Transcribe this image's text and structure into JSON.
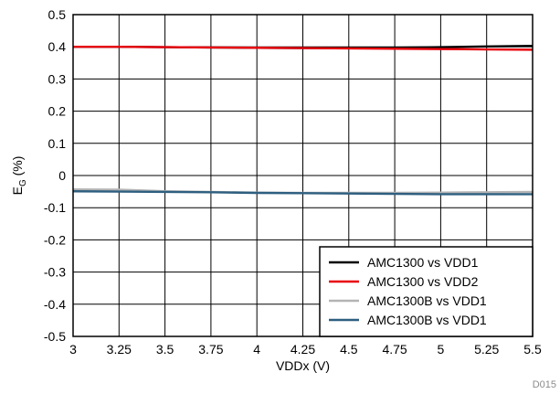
{
  "chart_data": {
    "type": "line",
    "xlabel": "VDDx (V)",
    "ylabel_main": "E",
    "ylabel_sub": "G",
    "ylabel_unit": " (%)",
    "xlim": [
      3,
      5.5
    ],
    "ylim": [
      -0.5,
      0.5
    ],
    "x_ticks": [
      "3",
      "3.25",
      "3.5",
      "3.75",
      "4",
      "4.25",
      "4.5",
      "4.75",
      "5",
      "5.25",
      "5.5"
    ],
    "y_ticks": [
      "0.5",
      "0.4",
      "0.3",
      "0.2",
      "0.1",
      "0",
      "-0.1",
      "-0.2",
      "-0.3",
      "-0.4",
      "-0.5"
    ],
    "grid": true,
    "legend_position": "bottom-right",
    "footnote": "D015",
    "series": [
      {
        "name": "AMC1300 vs VDD1",
        "color": "#000000",
        "x": [
          3,
          3.25,
          3.5,
          3.75,
          4,
          4.25,
          4.5,
          4.75,
          5,
          5.25,
          5.5
        ],
        "y": [
          0.4,
          0.4,
          0.399,
          0.398,
          0.397,
          0.396,
          0.396,
          0.397,
          0.399,
          0.401,
          0.403
        ]
      },
      {
        "name": "AMC1300 vs VDD2",
        "color": "#e8000b",
        "x": [
          3,
          3.25,
          3.5,
          3.75,
          4,
          4.25,
          4.5,
          4.75,
          5,
          5.25,
          5.5
        ],
        "y": [
          0.4,
          0.4,
          0.399,
          0.398,
          0.397,
          0.396,
          0.395,
          0.394,
          0.393,
          0.392,
          0.391
        ]
      },
      {
        "name": "AMC1300B vs VDD1",
        "color": "#b4b4b4",
        "x": [
          3,
          3.25,
          3.5,
          3.75,
          4,
          4.25,
          4.5,
          4.75,
          5,
          5.25,
          5.5
        ],
        "y": [
          -0.043,
          -0.044,
          -0.049,
          -0.051,
          -0.053,
          -0.054,
          -0.054,
          -0.054,
          -0.053,
          -0.052,
          -0.051
        ]
      },
      {
        "name": "AMC1300B vs VDD1",
        "color": "#2e5f80",
        "x": [
          3,
          3.25,
          3.5,
          3.75,
          4,
          4.25,
          4.5,
          4.75,
          5,
          5.25,
          5.5
        ],
        "y": [
          -0.049,
          -0.05,
          -0.051,
          -0.052,
          -0.054,
          -0.055,
          -0.056,
          -0.057,
          -0.058,
          -0.058,
          -0.058
        ]
      }
    ]
  }
}
